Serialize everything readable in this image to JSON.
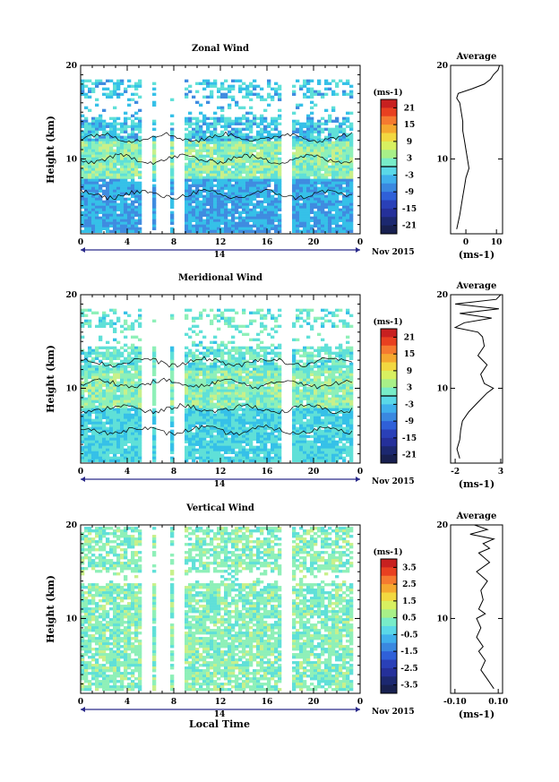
{
  "chart_data": [
    {
      "type": "heatmap",
      "title": "Zonal Wind",
      "ylabel": "Height (km)",
      "xlabel": "",
      "colorbar_unit": "(ms-1)",
      "colorbar_ticks": [
        "21",
        "15",
        "9",
        "3",
        "-3",
        "-9",
        "-15",
        "-21"
      ],
      "colorbar_range": [
        -24,
        24
      ],
      "x_ticks": [
        "0",
        "4",
        "8",
        "12",
        "16",
        "20",
        "0"
      ],
      "y_ticks": [
        "20",
        "10"
      ],
      "y_range": [
        2,
        20
      ],
      "date_label": "14",
      "date_suffix": "Nov 2015",
      "contour": "0 ms-1 line",
      "profile": {
        "title": "Average",
        "xlabel": "(ms-1)",
        "x_ticks": [
          "0",
          "10"
        ],
        "x_range": [
          -5,
          12
        ],
        "heights": [
          2.5,
          4,
          5,
          6,
          7,
          8,
          9,
          10,
          11,
          12,
          13,
          14,
          15,
          16,
          16.5,
          17,
          17.5,
          18,
          18.5,
          19,
          19.5,
          20
        ],
        "values": [
          -3,
          -2,
          -1.5,
          -1,
          -0.5,
          0,
          1,
          0.5,
          0,
          -0.5,
          -1,
          -1,
          -1.5,
          -2,
          -3,
          -2.5,
          2,
          6,
          8,
          9,
          10.5,
          11
        ]
      }
    },
    {
      "type": "heatmap",
      "title": "Meridional Wind",
      "ylabel": "Height (km)",
      "xlabel": "",
      "colorbar_unit": "(ms-1)",
      "colorbar_ticks": [
        "21",
        "15",
        "9",
        "3",
        "-3",
        "-9",
        "-15",
        "-21"
      ],
      "colorbar_range": [
        -24,
        24
      ],
      "x_ticks": [
        "0",
        "4",
        "8",
        "12",
        "16",
        "20",
        "0"
      ],
      "y_ticks": [
        "20",
        "10"
      ],
      "y_range": [
        2,
        20
      ],
      "date_label": "14",
      "date_suffix": "Nov 2015",
      "contour": "0 ms-1 line",
      "profile": {
        "title": "Average",
        "xlabel": "(ms-1)",
        "x_ticks": [
          "-2",
          "3"
        ],
        "x_range": [
          -2.5,
          3.2
        ],
        "heights": [
          2.5,
          3.5,
          4.5,
          5.5,
          6.5,
          7.5,
          8.5,
          9.5,
          10,
          10.5,
          11.5,
          12.5,
          13.5,
          14.5,
          15.5,
          16,
          16.5,
          17,
          17.5,
          18,
          18.5,
          19,
          19.5,
          20
        ],
        "values": [
          -1.5,
          -1.8,
          -1.5,
          -1.4,
          -1.2,
          -0.5,
          0.5,
          1.5,
          2.2,
          1.2,
          0.8,
          1.5,
          0.5,
          1.2,
          1,
          0.5,
          -2,
          -1,
          2,
          -1.5,
          2.8,
          -2,
          2.5,
          3
        ]
      }
    },
    {
      "type": "heatmap",
      "title": "Vertical Wind",
      "ylabel": "Height (km)",
      "xlabel": "Local Time",
      "colorbar_unit": "(ms-1)",
      "colorbar_ticks": [
        "3.5",
        "2.5",
        "1.5",
        "0.5",
        "-0.5",
        "-1.5",
        "-2.5",
        "-3.5"
      ],
      "colorbar_range": [
        -4,
        4
      ],
      "x_ticks": [
        "0",
        "4",
        "8",
        "12",
        "16",
        "20",
        "0"
      ],
      "y_ticks": [
        "20",
        "10"
      ],
      "y_range": [
        2,
        20
      ],
      "date_label": "14",
      "date_suffix": "Nov 2015",
      "contour": "",
      "profile": {
        "title": "Average",
        "xlabel": "(ms-1)",
        "x_ticks": [
          "-0.10",
          "0.10"
        ],
        "x_range": [
          -0.12,
          0.12
        ],
        "heights": [
          2.5,
          3.5,
          4.5,
          5.5,
          6.5,
          7,
          8,
          9,
          10,
          10.5,
          11,
          12,
          13,
          14,
          15,
          16,
          17,
          17.5,
          18,
          18.5,
          19,
          19.5,
          20
        ],
        "values": [
          0.08,
          0.05,
          0.02,
          0.04,
          0.01,
          0.03,
          0.0,
          0.02,
          0.0,
          0.04,
          0.01,
          0.03,
          0.02,
          0.05,
          0.0,
          0.06,
          0.01,
          0.06,
          0.03,
          0.08,
          -0.03,
          0.05,
          -0.01
        ]
      }
    }
  ]
}
